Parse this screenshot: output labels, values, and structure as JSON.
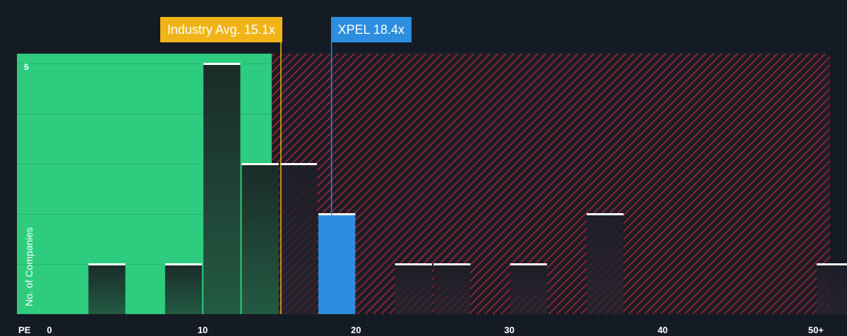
{
  "chart_data": {
    "type": "bar",
    "xlabel": "PE",
    "ylabel": "No. of Companies",
    "x_tick_labels": [
      "0",
      "10",
      "20",
      "30",
      "40",
      "50+"
    ],
    "x_tick_values": [
      0,
      10,
      20,
      30,
      40,
      50
    ],
    "y_tick_labels": [
      "5"
    ],
    "y_tick_values": [
      5
    ],
    "xlim": [
      0,
      50.5
    ],
    "ylim": [
      0,
      5.2
    ],
    "bin_width": 2.5,
    "bins": [
      {
        "x0": 2.5,
        "value": 1
      },
      {
        "x0": 7.5,
        "value": 1
      },
      {
        "x0": 10,
        "value": 5
      },
      {
        "x0": 12.5,
        "value": 3
      },
      {
        "x0": 15,
        "value": 3
      },
      {
        "x0": 17.5,
        "value": 2,
        "highlight": true
      },
      {
        "x0": 22.5,
        "value": 1
      },
      {
        "x0": 25,
        "value": 1
      },
      {
        "x0": 30,
        "value": 1
      },
      {
        "x0": 35,
        "value": 2
      },
      {
        "x0": 50,
        "value": 1
      }
    ],
    "fair_zone_max": 14.5,
    "industry_avg": {
      "label": "Industry Avg. 15.1x",
      "value": 15.1
    },
    "company": {
      "label": "XPEL 18.4x",
      "value": 18.4
    },
    "colors": {
      "background": "#151b24",
      "fair_zone": "#2ecc7f",
      "over_zone_stripe": "#c8313e",
      "highlight_bar": "#2d8ee0",
      "industry_marker": "#f0b418",
      "company_marker": "#2d8ee0"
    }
  }
}
